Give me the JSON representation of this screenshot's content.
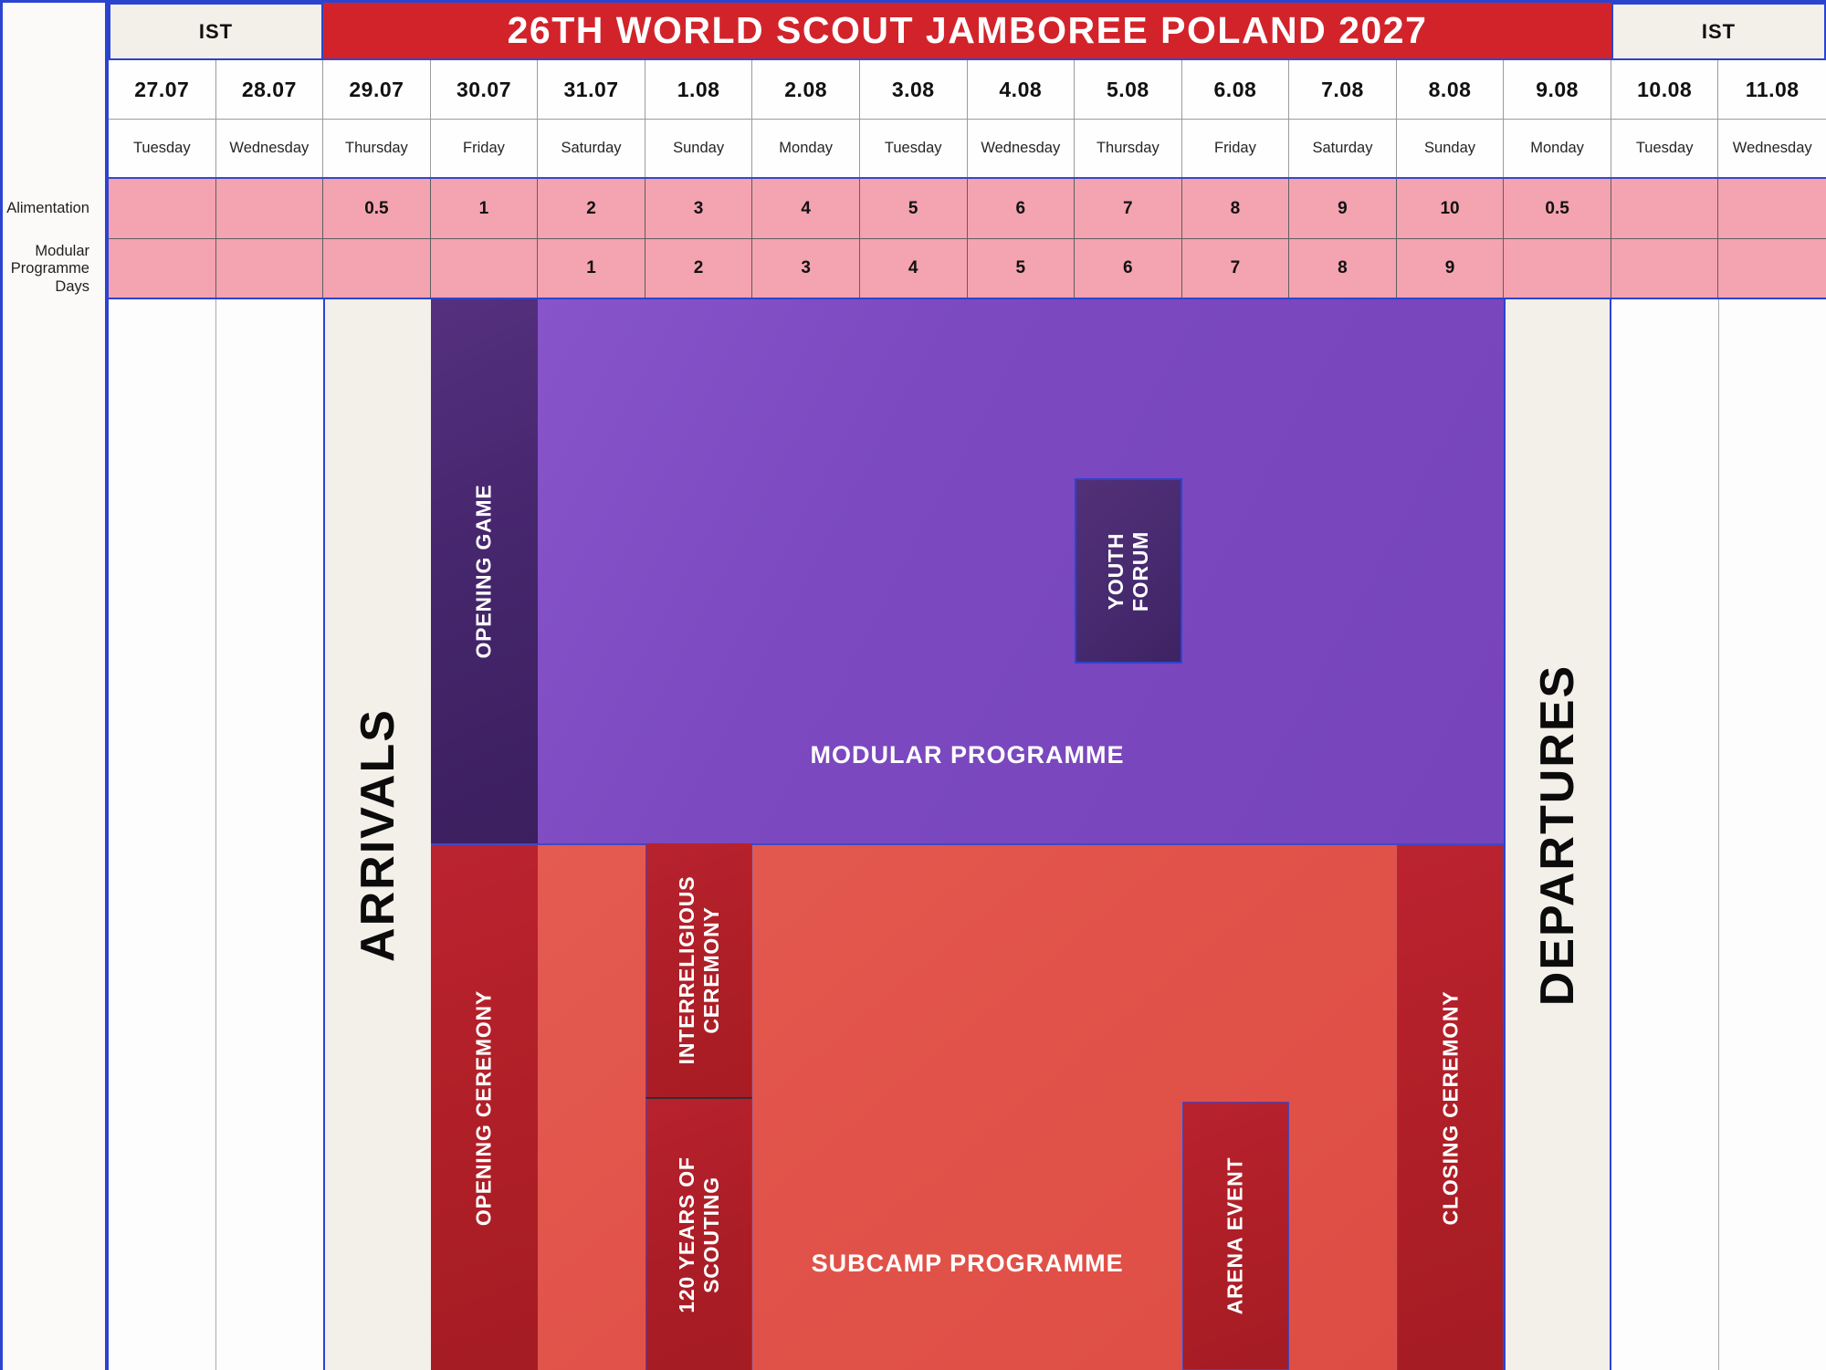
{
  "header": {
    "ist_left": "IST",
    "title": "26TH WORLD SCOUT JAMBOREE POLAND 2027",
    "ist_right": "IST"
  },
  "row_labels": {
    "alimentation": "Alimentation",
    "modular_programme_days": "Modular Programme Days"
  },
  "columns": [
    {
      "date": "27.07",
      "day": "Tuesday",
      "alimentation": "",
      "modular": ""
    },
    {
      "date": "28.07",
      "day": "Wednesday",
      "alimentation": "",
      "modular": ""
    },
    {
      "date": "29.07",
      "day": "Thursday",
      "alimentation": "0.5",
      "modular": ""
    },
    {
      "date": "30.07",
      "day": "Friday",
      "alimentation": "1",
      "modular": ""
    },
    {
      "date": "31.07",
      "day": "Saturday",
      "alimentation": "2",
      "modular": "1"
    },
    {
      "date": "1.08",
      "day": "Sunday",
      "alimentation": "3",
      "modular": "2"
    },
    {
      "date": "2.08",
      "day": "Monday",
      "alimentation": "4",
      "modular": "3"
    },
    {
      "date": "3.08",
      "day": "Tuesday",
      "alimentation": "5",
      "modular": "4"
    },
    {
      "date": "4.08",
      "day": "Wednesday",
      "alimentation": "6",
      "modular": "5"
    },
    {
      "date": "5.08",
      "day": "Thursday",
      "alimentation": "7",
      "modular": "6"
    },
    {
      "date": "6.08",
      "day": "Friday",
      "alimentation": "8",
      "modular": "7"
    },
    {
      "date": "7.08",
      "day": "Saturday",
      "alimentation": "9",
      "modular": "8"
    },
    {
      "date": "8.08",
      "day": "Sunday",
      "alimentation": "10",
      "modular": "9"
    },
    {
      "date": "9.08",
      "day": "Monday",
      "alimentation": "0.5",
      "modular": ""
    },
    {
      "date": "10.08",
      "day": "Tuesday",
      "alimentation": "",
      "modular": ""
    },
    {
      "date": "11.08",
      "day": "Wednesday",
      "alimentation": "",
      "modular": ""
    }
  ],
  "blocks": {
    "arrivals": "ARRIVALS",
    "departures": "DEPARTURES",
    "opening_game": "OPENING GAME",
    "modular_programme": "MODULAR PROGRAMME",
    "youth_forum": "YOUTH FORUM",
    "opening_ceremony": "OPENING CEREMONY",
    "interreligious_ceremony": "INTERRELIGIOUS CEREMONY",
    "years_of_scouting": "120 YEARS OF SCOUTING",
    "subcamp_programme": "SUBCAMP PROGRAMME",
    "arena_event": "ARENA EVENT",
    "closing_ceremony": "CLOSING CEREMONY"
  },
  "schedule_spans": [
    {
      "label": "ARRIVALS",
      "columns": [
        "29.07"
      ]
    },
    {
      "label": "OPENING GAME",
      "columns": [
        "30.07"
      ]
    },
    {
      "label": "MODULAR PROGRAMME",
      "columns": [
        "30.07",
        "8.08"
      ]
    },
    {
      "label": "YOUTH FORUM",
      "columns": [
        "5.08"
      ]
    },
    {
      "label": "OPENING CEREMONY",
      "columns": [
        "30.07"
      ]
    },
    {
      "label": "SUBCAMP PROGRAMME",
      "columns": [
        "31.07",
        "7.08"
      ]
    },
    {
      "label": "INTERRELIGIOUS CEREMONY",
      "columns": [
        "1.08"
      ]
    },
    {
      "label": "120 YEARS OF SCOUTING",
      "columns": [
        "1.08"
      ]
    },
    {
      "label": "ARENA EVENT",
      "columns": [
        "6.08"
      ]
    },
    {
      "label": "CLOSING CEREMONY",
      "columns": [
        "8.08"
      ]
    },
    {
      "label": "DEPARTURES",
      "columns": [
        "9.08"
      ]
    }
  ],
  "colors": {
    "banner_red": "#d2232b",
    "dark_red": "#b01f27",
    "salmon": "#e1534a",
    "purple": "#7c49c0",
    "dark_purple": "#46266d",
    "pink": "#f4a3b0",
    "cream": "#f3efe9",
    "border_blue": "#2b44d0",
    "grid_gray": "#9b9b9b"
  }
}
